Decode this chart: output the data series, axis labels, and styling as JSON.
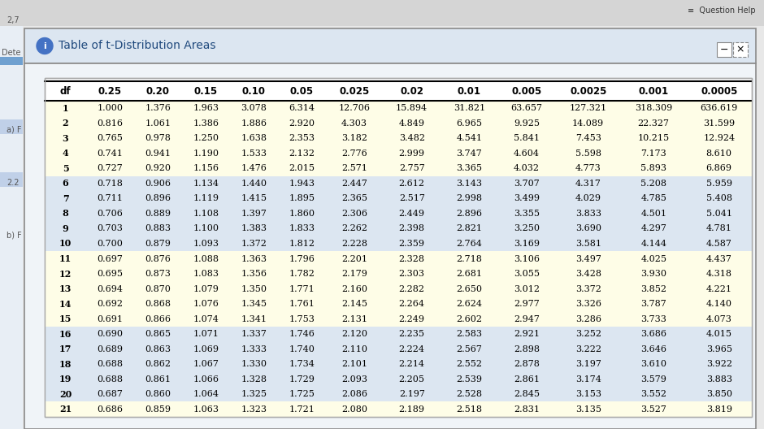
{
  "title": "Table of t-Distribution Areas",
  "columns": [
    "df",
    "0.25",
    "0.20",
    "0.15",
    "0.10",
    "0.05",
    "0.025",
    "0.02",
    "0.01",
    "0.005",
    "0.0025",
    "0.001",
    "0.0005"
  ],
  "rows": [
    [
      1,
      1.0,
      1.376,
      1.963,
      3.078,
      6.314,
      12.706,
      15.894,
      31.821,
      63.657,
      127.321,
      318.309,
      636.619
    ],
    [
      2,
      0.816,
      1.061,
      1.386,
      1.886,
      2.92,
      4.303,
      4.849,
      6.965,
      9.925,
      14.089,
      22.327,
      31.599
    ],
    [
      3,
      0.765,
      0.978,
      1.25,
      1.638,
      2.353,
      3.182,
      3.482,
      4.541,
      5.841,
      7.453,
      10.215,
      12.924
    ],
    [
      4,
      0.741,
      0.941,
      1.19,
      1.533,
      2.132,
      2.776,
      2.999,
      3.747,
      4.604,
      5.598,
      7.173,
      8.61
    ],
    [
      5,
      0.727,
      0.92,
      1.156,
      1.476,
      2.015,
      2.571,
      2.757,
      3.365,
      4.032,
      4.773,
      5.893,
      6.869
    ],
    [
      6,
      0.718,
      0.906,
      1.134,
      1.44,
      1.943,
      2.447,
      2.612,
      3.143,
      3.707,
      4.317,
      5.208,
      5.959
    ],
    [
      7,
      0.711,
      0.896,
      1.119,
      1.415,
      1.895,
      2.365,
      2.517,
      2.998,
      3.499,
      4.029,
      4.785,
      5.408
    ],
    [
      8,
      0.706,
      0.889,
      1.108,
      1.397,
      1.86,
      2.306,
      2.449,
      2.896,
      3.355,
      3.833,
      4.501,
      5.041
    ],
    [
      9,
      0.703,
      0.883,
      1.1,
      1.383,
      1.833,
      2.262,
      2.398,
      2.821,
      3.25,
      3.69,
      4.297,
      4.781
    ],
    [
      10,
      0.7,
      0.879,
      1.093,
      1.372,
      1.812,
      2.228,
      2.359,
      2.764,
      3.169,
      3.581,
      4.144,
      4.587
    ],
    [
      11,
      0.697,
      0.876,
      1.088,
      1.363,
      1.796,
      2.201,
      2.328,
      2.718,
      3.106,
      3.497,
      4.025,
      4.437
    ],
    [
      12,
      0.695,
      0.873,
      1.083,
      1.356,
      1.782,
      2.179,
      2.303,
      2.681,
      3.055,
      3.428,
      3.93,
      4.318
    ],
    [
      13,
      0.694,
      0.87,
      1.079,
      1.35,
      1.771,
      2.16,
      2.282,
      2.65,
      3.012,
      3.372,
      3.852,
      4.221
    ],
    [
      14,
      0.692,
      0.868,
      1.076,
      1.345,
      1.761,
      2.145,
      2.264,
      2.624,
      2.977,
      3.326,
      3.787,
      4.14
    ],
    [
      15,
      0.691,
      0.866,
      1.074,
      1.341,
      1.753,
      2.131,
      2.249,
      2.602,
      2.947,
      3.286,
      3.733,
      4.073
    ],
    [
      16,
      0.69,
      0.865,
      1.071,
      1.337,
      1.746,
      2.12,
      2.235,
      2.583,
      2.921,
      3.252,
      3.686,
      4.015
    ],
    [
      17,
      0.689,
      0.863,
      1.069,
      1.333,
      1.74,
      2.11,
      2.224,
      2.567,
      2.898,
      3.222,
      3.646,
      3.965
    ],
    [
      18,
      0.688,
      0.862,
      1.067,
      1.33,
      1.734,
      2.101,
      2.214,
      2.552,
      2.878,
      3.197,
      3.61,
      3.922
    ],
    [
      19,
      0.688,
      0.861,
      1.066,
      1.328,
      1.729,
      2.093,
      2.205,
      2.539,
      2.861,
      3.174,
      3.579,
      3.883
    ],
    [
      20,
      0.687,
      0.86,
      1.064,
      1.325,
      1.725,
      2.086,
      2.197,
      2.528,
      2.845,
      3.153,
      3.552,
      3.85
    ],
    [
      21,
      0.686,
      0.859,
      1.063,
      1.323,
      1.721,
      2.08,
      2.189,
      2.518,
      2.831,
      3.135,
      3.527,
      3.819
    ]
  ],
  "bg_outer": "#e8e8e8",
  "bg_window": "#f0f4f8",
  "bg_titlebar": "#dce6f1",
  "bg_white": "#ffffff",
  "bg_yellow": "#fefde7",
  "bg_blue": "#dce6f1",
  "color_title": "#1f497d",
  "color_icon": "#4472c4",
  "color_black": "#000000",
  "color_border": "#7f7f7f",
  "title_fontsize": 10,
  "header_fontsize": 8.5,
  "data_fontsize": 8.0,
  "figsize": [
    9.4,
    5.28
  ],
  "dpi": 100
}
